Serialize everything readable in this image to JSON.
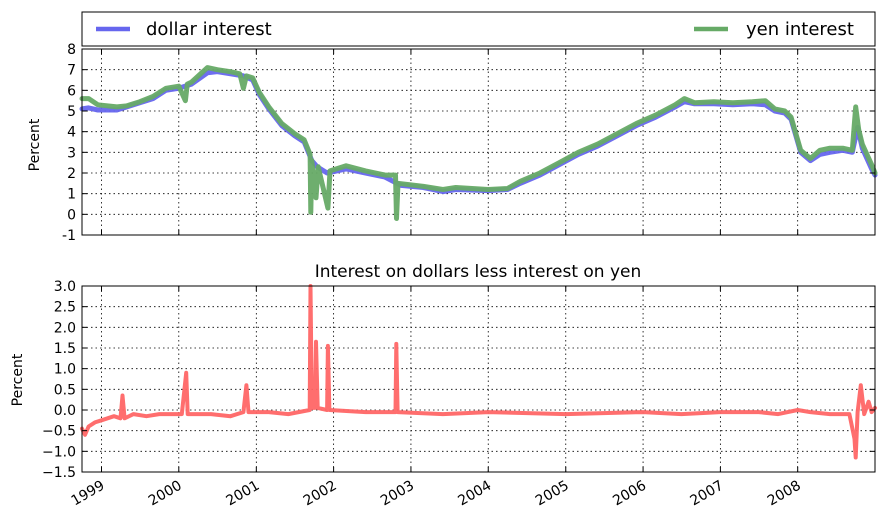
{
  "chart_data": [
    {
      "type": "line",
      "title": "",
      "xlabel": "",
      "ylabel": "Percent",
      "ylim": [
        -1,
        8
      ],
      "yticks": [
        -1,
        0,
        1,
        2,
        3,
        4,
        5,
        6,
        7,
        8
      ],
      "xlim": [
        "1998-10-01",
        "2008-12-31"
      ],
      "x_tick_labels": [
        "1999",
        "2000",
        "2001",
        "2002",
        "2003",
        "2004",
        "2005",
        "2006",
        "2007",
        "2008"
      ],
      "x_tick_labels_shown": false,
      "grid": true,
      "legend": {
        "placement": "above-plot",
        "entries": [
          "dollar interest",
          "yen interest"
        ]
      },
      "series": [
        {
          "name": "dollar interest",
          "color": "#6666ee",
          "points": [
            [
              "1998-10-01",
              5.1
            ],
            [
              "1998-11-01",
              5.15
            ],
            [
              "1998-12-15",
              5.05
            ],
            [
              "1999-03-15",
              5.05
            ],
            [
              "1999-05-01",
              5.2
            ],
            [
              "1999-07-01",
              5.4
            ],
            [
              "1999-09-01",
              5.6
            ],
            [
              "1999-11-01",
              6.0
            ],
            [
              "2000-01-01",
              6.1
            ],
            [
              "2000-03-01",
              6.3
            ],
            [
              "2000-05-15",
              6.85
            ],
            [
              "2000-07-01",
              6.9
            ],
            [
              "2000-09-01",
              6.8
            ],
            [
              "2000-11-01",
              6.7
            ],
            [
              "2000-12-15",
              6.5
            ],
            [
              "2001-01-15",
              5.8
            ],
            [
              "2001-03-01",
              5.1
            ],
            [
              "2001-05-01",
              4.3
            ],
            [
              "2001-07-01",
              3.8
            ],
            [
              "2001-08-15",
              3.5
            ],
            [
              "2001-09-20",
              2.6
            ],
            [
              "2001-10-15",
              2.3
            ],
            [
              "2001-12-01",
              2.0
            ],
            [
              "2002-03-01",
              2.2
            ],
            [
              "2002-06-01",
              2.0
            ],
            [
              "2002-09-01",
              1.8
            ],
            [
              "2002-11-15",
              1.4
            ],
            [
              "2003-03-01",
              1.3
            ],
            [
              "2003-06-01",
              1.1
            ],
            [
              "2003-08-01",
              1.2
            ],
            [
              "2004-01-01",
              1.15
            ],
            [
              "2004-04-01",
              1.2
            ],
            [
              "2004-06-01",
              1.5
            ],
            [
              "2004-09-01",
              1.9
            ],
            [
              "2004-12-01",
              2.4
            ],
            [
              "2005-03-01",
              2.9
            ],
            [
              "2005-06-01",
              3.3
            ],
            [
              "2005-09-01",
              3.8
            ],
            [
              "2005-12-01",
              4.3
            ],
            [
              "2006-03-01",
              4.7
            ],
            [
              "2006-06-01",
              5.2
            ],
            [
              "2006-07-15",
              5.45
            ],
            [
              "2006-09-01",
              5.35
            ],
            [
              "2006-12-01",
              5.35
            ],
            [
              "2007-03-01",
              5.3
            ],
            [
              "2007-06-01",
              5.35
            ],
            [
              "2007-08-01",
              5.3
            ],
            [
              "2007-09-15",
              5.0
            ],
            [
              "2007-11-01",
              4.9
            ],
            [
              "2007-12-01",
              4.6
            ],
            [
              "2008-01-15",
              3.0
            ],
            [
              "2008-03-01",
              2.6
            ],
            [
              "2008-04-15",
              2.9
            ],
            [
              "2008-06-01",
              3.0
            ],
            [
              "2008-08-01",
              3.1
            ],
            [
              "2008-09-15",
              3.0
            ],
            [
              "2008-10-10",
              4.2
            ],
            [
              "2008-11-01",
              3.2
            ],
            [
              "2008-12-15",
              2.2
            ],
            [
              "2008-12-31",
              1.9
            ]
          ]
        },
        {
          "name": "yen interest",
          "color": "#66aa66",
          "points": [
            [
              "1998-10-01",
              5.6
            ],
            [
              "1998-11-01",
              5.6
            ],
            [
              "1998-12-15",
              5.3
            ],
            [
              "1999-03-15",
              5.2
            ],
            [
              "1999-05-01",
              5.25
            ],
            [
              "1999-07-01",
              5.45
            ],
            [
              "1999-09-01",
              5.7
            ],
            [
              "1999-11-01",
              6.1
            ],
            [
              "2000-01-01",
              6.2
            ],
            [
              "2000-02-01",
              5.5
            ],
            [
              "2000-02-10",
              6.3
            ],
            [
              "2000-03-01",
              6.4
            ],
            [
              "2000-05-15",
              7.1
            ],
            [
              "2000-07-01",
              7.0
            ],
            [
              "2000-09-01",
              6.9
            ],
            [
              "2000-10-15",
              6.8
            ],
            [
              "2000-11-01",
              6.1
            ],
            [
              "2000-11-15",
              6.7
            ],
            [
              "2000-12-15",
              6.6
            ],
            [
              "2001-01-15",
              5.9
            ],
            [
              "2001-03-01",
              5.2
            ],
            [
              "2001-05-01",
              4.4
            ],
            [
              "2001-07-01",
              3.9
            ],
            [
              "2001-08-15",
              3.6
            ],
            [
              "2001-09-12",
              2.9
            ],
            [
              "2001-09-15",
              0.1
            ],
            [
              "2001-09-20",
              2.6
            ],
            [
              "2001-10-10",
              0.8
            ],
            [
              "2001-10-20",
              2.3
            ],
            [
              "2001-12-05",
              0.3
            ],
            [
              "2001-12-15",
              2.1
            ],
            [
              "2002-03-01",
              2.35
            ],
            [
              "2002-06-01",
              2.1
            ],
            [
              "2002-09-01",
              1.9
            ],
            [
              "2002-10-20",
              1.9
            ],
            [
              "2002-10-25",
              -0.2
            ],
            [
              "2002-11-01",
              1.5
            ],
            [
              "2003-03-01",
              1.35
            ],
            [
              "2003-06-01",
              1.2
            ],
            [
              "2003-08-01",
              1.3
            ],
            [
              "2004-01-01",
              1.2
            ],
            [
              "2004-04-01",
              1.25
            ],
            [
              "2004-06-01",
              1.6
            ],
            [
              "2004-09-01",
              2.0
            ],
            [
              "2004-12-01",
              2.5
            ],
            [
              "2005-03-01",
              3.0
            ],
            [
              "2005-06-01",
              3.4
            ],
            [
              "2005-09-01",
              3.9
            ],
            [
              "2005-12-01",
              4.4
            ],
            [
              "2006-03-01",
              4.8
            ],
            [
              "2006-06-01",
              5.3
            ],
            [
              "2006-07-15",
              5.6
            ],
            [
              "2006-09-01",
              5.4
            ],
            [
              "2006-12-01",
              5.45
            ],
            [
              "2007-03-01",
              5.4
            ],
            [
              "2007-06-01",
              5.45
            ],
            [
              "2007-08-01",
              5.5
            ],
            [
              "2007-09-15",
              5.1
            ],
            [
              "2007-11-01",
              5.0
            ],
            [
              "2007-12-01",
              4.7
            ],
            [
              "2008-01-15",
              3.1
            ],
            [
              "2008-03-01",
              2.7
            ],
            [
              "2008-04-15",
              3.1
            ],
            [
              "2008-06-01",
              3.2
            ],
            [
              "2008-08-01",
              3.2
            ],
            [
              "2008-09-15",
              3.1
            ],
            [
              "2008-10-01",
              5.2
            ],
            [
              "2008-10-15",
              4.1
            ],
            [
              "2008-11-01",
              3.4
            ],
            [
              "2008-12-15",
              2.4
            ],
            [
              "2008-12-31",
              2.0
            ]
          ]
        }
      ]
    },
    {
      "type": "line",
      "title": "Interest on dollars less interest on yen",
      "xlabel": "",
      "ylabel": "Percent",
      "ylim": [
        -1.5,
        3.0
      ],
      "yticks": [
        "−1.5",
        "−1.0",
        "−0.5",
        "0.0",
        "0.5",
        "1.0",
        "1.5",
        "2.0",
        "2.5",
        "3.0"
      ],
      "xlim": [
        "1998-10-01",
        "2008-12-31"
      ],
      "x_tick_labels": [
        "1999",
        "2000",
        "2001",
        "2002",
        "2003",
        "2004",
        "2005",
        "2006",
        "2007",
        "2008"
      ],
      "grid": true,
      "series": [
        {
          "color": "#ff6666",
          "points": [
            [
              "1998-10-01",
              -0.45
            ],
            [
              "1998-10-15",
              -0.6
            ],
            [
              "1998-11-01",
              -0.4
            ],
            [
              "1998-12-01",
              -0.3
            ],
            [
              "1999-01-01",
              -0.25
            ],
            [
              "1999-03-01",
              -0.15
            ],
            [
              "1999-04-01",
              -0.2
            ],
            [
              "1999-04-10",
              0.35
            ],
            [
              "1999-04-20",
              -0.2
            ],
            [
              "1999-06-01",
              -0.1
            ],
            [
              "1999-08-01",
              -0.15
            ],
            [
              "1999-10-01",
              -0.1
            ],
            [
              "2000-01-15",
              -0.1
            ],
            [
              "2000-02-05",
              0.9
            ],
            [
              "2000-02-12",
              -0.1
            ],
            [
              "2000-06-01",
              -0.1
            ],
            [
              "2000-09-01",
              -0.15
            ],
            [
              "2000-11-01",
              -0.05
            ],
            [
              "2000-11-15",
              0.6
            ],
            [
              "2000-11-25",
              -0.05
            ],
            [
              "2001-03-01",
              -0.05
            ],
            [
              "2001-06-01",
              -0.1
            ],
            [
              "2001-09-10",
              0.0
            ],
            [
              "2001-09-14",
              3.0
            ],
            [
              "2001-09-20",
              0.05
            ],
            [
              "2001-10-05",
              0.05
            ],
            [
              "2001-10-10",
              1.65
            ],
            [
              "2001-10-18",
              0.05
            ],
            [
              "2001-12-01",
              0.0
            ],
            [
              "2001-12-05",
              1.55
            ],
            [
              "2001-12-12",
              0.0
            ],
            [
              "2002-06-01",
              -0.05
            ],
            [
              "2002-10-20",
              -0.05
            ],
            [
              "2002-10-24",
              1.6
            ],
            [
              "2002-10-30",
              -0.05
            ],
            [
              "2003-06-01",
              -0.1
            ],
            [
              "2004-01-01",
              -0.05
            ],
            [
              "2005-01-01",
              -0.1
            ],
            [
              "2006-01-01",
              -0.05
            ],
            [
              "2006-07-01",
              -0.1
            ],
            [
              "2007-01-01",
              -0.05
            ],
            [
              "2007-07-01",
              -0.05
            ],
            [
              "2007-10-01",
              -0.1
            ],
            [
              "2008-01-01",
              0.0
            ],
            [
              "2008-03-01",
              -0.05
            ],
            [
              "2008-06-01",
              -0.1
            ],
            [
              "2008-09-01",
              -0.1
            ],
            [
              "2008-09-25",
              -0.7
            ],
            [
              "2008-10-01",
              -1.15
            ],
            [
              "2008-10-10",
              -0.05
            ],
            [
              "2008-10-25",
              0.6
            ],
            [
              "2008-11-10",
              -0.1
            ],
            [
              "2008-12-01",
              0.2
            ],
            [
              "2008-12-15",
              -0.05
            ],
            [
              "2008-12-31",
              0.05
            ]
          ]
        }
      ]
    }
  ]
}
